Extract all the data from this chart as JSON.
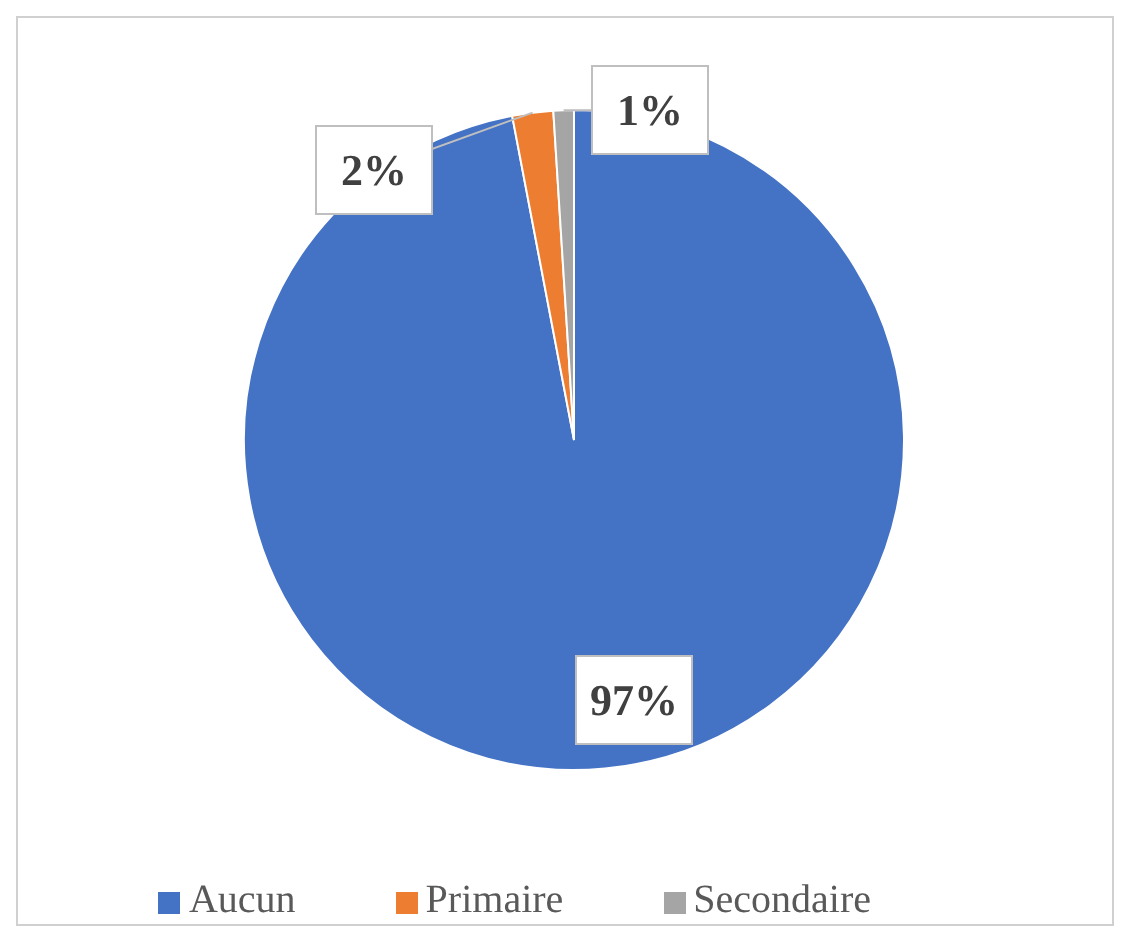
{
  "chart_data": {
    "type": "pie",
    "categories": [
      "Aucun",
      "Primaire",
      "Secondaire"
    ],
    "values": [
      97,
      2,
      1
    ],
    "colors": [
      "#4472c4",
      "#ed7d31",
      "#a5a5a5"
    ],
    "value_labels": [
      "97%",
      "2%",
      "1%"
    ],
    "legend": "bottom"
  }
}
